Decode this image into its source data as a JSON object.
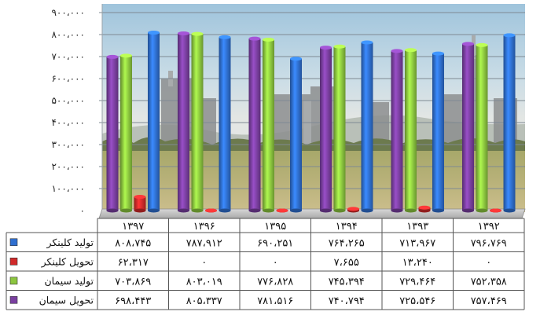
{
  "chart_data": {
    "type": "bar",
    "categories": [
      "1392",
      "1393",
      "1394",
      "1395",
      "1396",
      "1397"
    ],
    "category_labels": [
      "۱۳۹۲",
      "۱۳۹۳",
      "۱۳۹۴",
      "۱۳۹۵",
      "۱۳۹۶",
      "۱۳۹۷"
    ],
    "ylim": [
      0,
      900000
    ],
    "yticks": [
      0,
      100000,
      200000,
      300000,
      400000,
      500000,
      600000,
      700000,
      800000,
      900000
    ],
    "ytick_labels": [
      "۰",
      "۱۰۰،۰۰۰",
      "۲۰۰،۰۰۰",
      "۳۰۰،۰۰۰",
      "۴۰۰،۰۰۰",
      "۵۰۰،۰۰۰",
      "۶۰۰،۰۰۰",
      "۷۰۰،۰۰۰",
      "۸۰۰،۰۰۰",
      "۹۰۰،۰۰۰"
    ],
    "grid": true,
    "legend": "table",
    "series": [
      {
        "name": "تولید کلینکر",
        "color": "#2f6fd0",
        "values": [
          796769,
          713967,
          764265,
          690251,
          787912,
          808745
        ],
        "labels": [
          "۷۹۶،۷۶۹",
          "۷۱۳،۹۶۷",
          "۷۶۴،۲۶۵",
          "۶۹۰،۲۵۱",
          "۷۸۷،۹۱۲",
          "۸۰۸،۷۴۵"
        ]
      },
      {
        "name": "تحویل کلینکر",
        "color": "#d12a2a",
        "values": [
          0,
          13240,
          7655,
          0,
          0,
          62317
        ],
        "labels": [
          "۰",
          "۱۳،۲۴۰",
          "۷،۶۵۵",
          "۰",
          "۰",
          "۶۲،۳۱۷"
        ]
      },
      {
        "name": "تولید سیمان",
        "color": "#8cc63f",
        "values": [
          752358,
          729464,
          745394,
          776828,
          803019,
          703869
        ],
        "labels": [
          "۷۵۲،۳۵۸",
          "۷۲۹،۴۶۴",
          "۷۴۵،۳۹۴",
          "۷۷۶،۸۲۸",
          "۸۰۳،۰۱۹",
          "۷۰۳،۸۶۹"
        ]
      },
      {
        "name": "تحویل سیمان",
        "color": "#7a3fa0",
        "values": [
          757469,
          725546,
          740794,
          781516,
          805337,
          698443
        ],
        "labels": [
          "۷۵۷،۴۶۹",
          "۷۲۵،۵۴۶",
          "۷۴۰،۷۹۴",
          "۷۸۱،۵۱۶",
          "۸۰۵،۳۳۷",
          "۶۹۸،۴۴۳"
        ]
      }
    ]
  }
}
